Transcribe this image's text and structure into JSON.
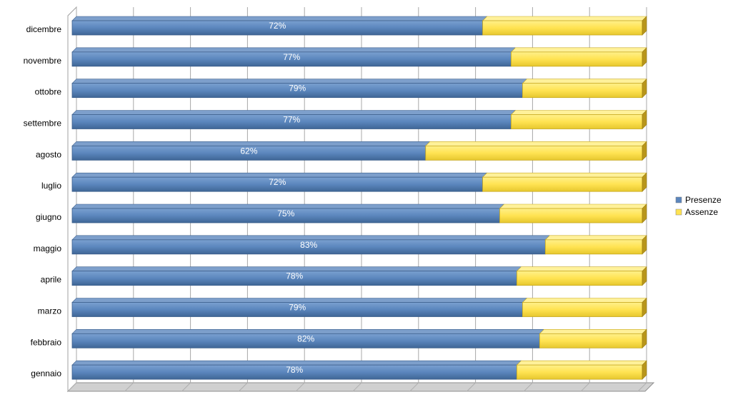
{
  "chart_data": {
    "type": "bar",
    "orientation": "horizontal",
    "stacked": "percent",
    "categories": [
      "gennaio",
      "febbraio",
      "marzo",
      "aprile",
      "maggio",
      "giugno",
      "luglio",
      "agosto",
      "settembre",
      "ottobre",
      "novembre",
      "dicembre"
    ],
    "series": [
      {
        "name": "Presenze",
        "color": "#5b86bd",
        "values": [
          78,
          82,
          79,
          78,
          83,
          75,
          72,
          62,
          77,
          79,
          77,
          72
        ],
        "labels": [
          "78%",
          "82%",
          "79%",
          "78%",
          "83%",
          "75%",
          "72%",
          "62%",
          "77%",
          "79%",
          "77%",
          "72%"
        ]
      },
      {
        "name": "Assenze",
        "color": "#ffe352",
        "values": [
          22,
          18,
          21,
          22,
          17,
          25,
          28,
          38,
          23,
          21,
          23,
          28
        ]
      }
    ],
    "xlim": [
      0,
      100
    ],
    "grid": true,
    "legend_position": "right"
  }
}
